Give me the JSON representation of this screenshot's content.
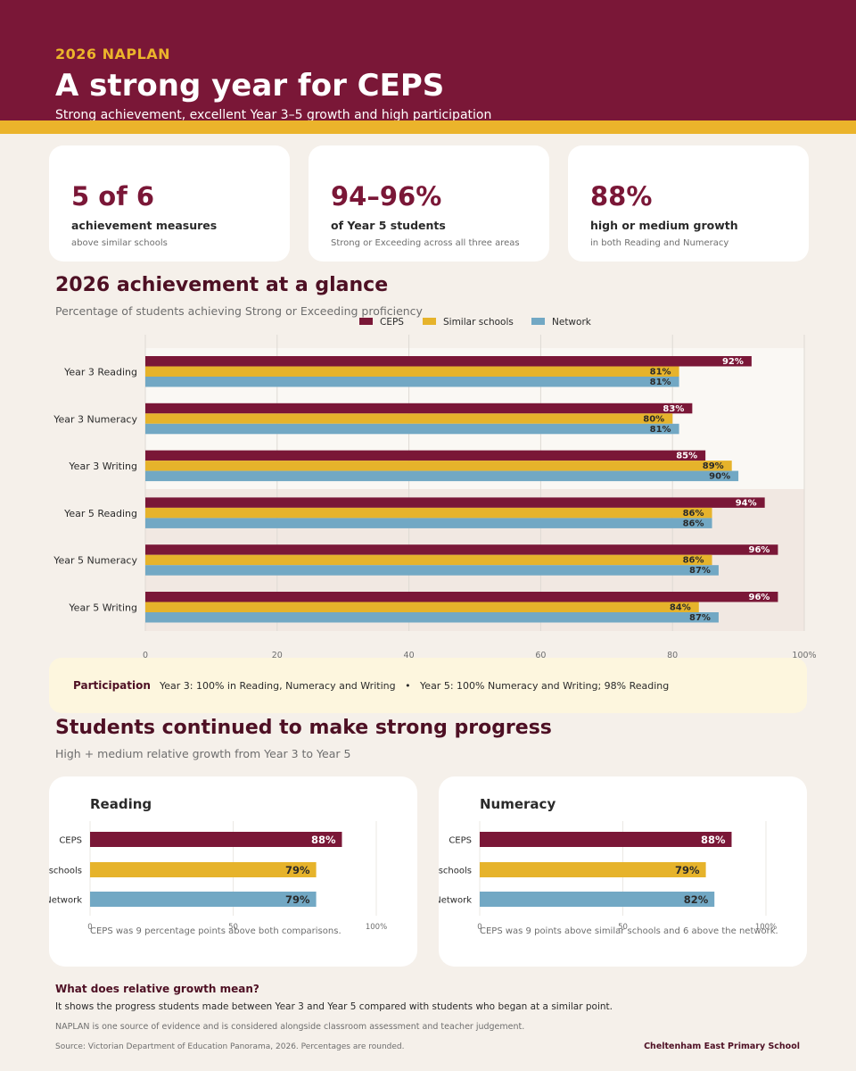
{
  "header": {
    "eyebrow": "2026 NAPLAN",
    "title": "A strong year for CEPS",
    "subtitle": "Strong achievement, excellent Year 3–5 growth and high participation"
  },
  "stats": [
    {
      "value": "5 of 6",
      "label": "achievement measures",
      "note": "above similar schools"
    },
    {
      "value": "94–96%",
      "label": "of Year 5 students",
      "note": "Strong or Exceeding across all three areas"
    },
    {
      "value": "88%",
      "label": "high or medium growth",
      "note": "in both Reading and Numeracy"
    }
  ],
  "achievement": {
    "title": "2026 achievement at a glance",
    "subtitle": "Percentage of students achieving Strong or Exceeding proficiency"
  },
  "colors": {
    "ceps": "#7a1737",
    "similar": "#e6b32b",
    "network": "#72a8c4"
  },
  "chart_data": [
    {
      "type": "bar",
      "orientation": "horizontal",
      "categories": [
        "Year 3 Reading",
        "Year 3 Numeracy",
        "Year 3 Writing",
        "Year 5 Reading",
        "Year 5 Numeracy",
        "Year 5 Writing"
      ],
      "series": [
        {
          "name": "CEPS",
          "values": [
            92,
            83,
            85,
            94,
            96,
            96
          ]
        },
        {
          "name": "Similar schools",
          "values": [
            81,
            80,
            89,
            86,
            86,
            84
          ]
        },
        {
          "name": "Network",
          "values": [
            81,
            81,
            90,
            86,
            87,
            87
          ]
        }
      ],
      "xlim": [
        0,
        100
      ],
      "xticks": [
        "0",
        "20",
        "40",
        "60",
        "80",
        "100%"
      ],
      "legend": "top",
      "grid": true
    },
    {
      "type": "bar",
      "orientation": "horizontal",
      "title": "Reading",
      "categories": [
        "CEPS",
        "Similar schools",
        "Network"
      ],
      "values": [
        88,
        79,
        79
      ],
      "xlim": [
        0,
        100
      ],
      "xticks": [
        "0",
        "50",
        "100%"
      ]
    },
    {
      "type": "bar",
      "orientation": "horizontal",
      "title": "Numeracy",
      "categories": [
        "CEPS",
        "Similar schools",
        "Network"
      ],
      "values": [
        88,
        79,
        82
      ],
      "xlim": [
        0,
        100
      ],
      "xticks": [
        "0",
        "50",
        "100%"
      ]
    }
  ],
  "participation": {
    "label": "Participation",
    "text": "Year 3: 100% in Reading, Numeracy and Writing   •   Year 5: 100% Numeracy and Writing; 98% Reading"
  },
  "growth": {
    "title": "Students continued to make strong progress",
    "subtitle": "High + medium relative growth from Year 3 to Year 5",
    "notes": [
      "CEPS was 9 percentage points above both comparisons.",
      "CEPS was 9 points above similar schools and 6 above the network."
    ]
  },
  "explainer": {
    "title": "What does relative growth mean?",
    "text": "It shows the progress students made between Year 3 and Year 5 compared with students who began at a similar point.",
    "note": "NAPLAN is one source of evidence and is considered alongside classroom assessment and teacher judgement."
  },
  "footer": {
    "source": "Source: Victorian Department of Education Panorama, 2026. Percentages are rounded.",
    "school": "Cheltenham East Primary School"
  }
}
